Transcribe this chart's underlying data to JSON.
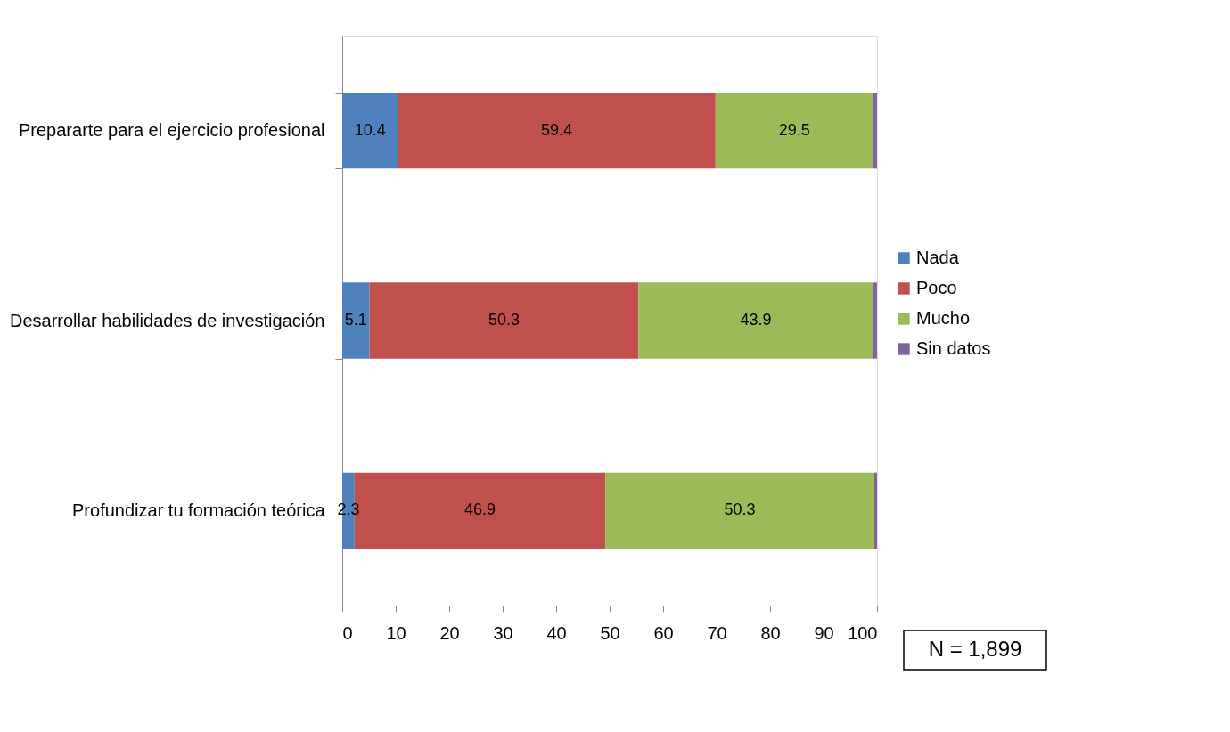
{
  "chart_data": {
    "type": "bar",
    "orientation": "horizontal",
    "stacked": true,
    "categories": [
      "Prepararte para el ejercicio profesional",
      "Desarrollar habilidades de investigación",
      "Profundizar tu formación teórica"
    ],
    "series": [
      {
        "name": "Nada",
        "color": "#4f81bd",
        "values": [
          10.4,
          5.1,
          2.3
        ],
        "value_labels": [
          "10.4",
          "5.1",
          "2.3"
        ]
      },
      {
        "name": "Poco",
        "color": "#c0504d",
        "values": [
          59.4,
          50.3,
          46.9
        ],
        "value_labels": [
          "59.4",
          "50.3",
          "46.9"
        ]
      },
      {
        "name": "Mucho",
        "color": "#9bbb59",
        "values": [
          29.5,
          43.9,
          50.3
        ],
        "value_labels": [
          "29.5",
          "43.9",
          "50.3"
        ]
      },
      {
        "name": "Sin datos",
        "color": "#8064a2",
        "values": [
          0.7,
          0.7,
          0.5
        ]
      }
    ],
    "xlim": [
      0,
      100
    ],
    "xticks": [
      0,
      10,
      20,
      30,
      40,
      50,
      60,
      70,
      80,
      90,
      100
    ],
    "grid": false,
    "legend": "right",
    "annotations": [
      "N = 1,899"
    ]
  }
}
